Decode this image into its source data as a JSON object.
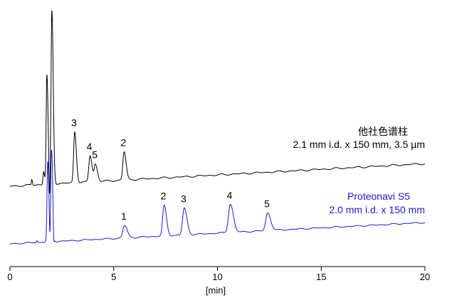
{
  "chart_data": {
    "type": "line",
    "xlabel": "[min]",
    "xlim": [
      0,
      20
    ],
    "xticks": [
      0,
      5,
      10,
      15,
      20
    ],
    "grid": false,
    "series": [
      {
        "name_line1": "他社色谱柱",
        "name_line2": "2.1 mm i.d. x 150 mm, 3.5 µm",
        "color": "#000000",
        "baseline_start": 0.0,
        "baseline_end": 0.12,
        "baseline_wiggle": 0.005,
        "peaks": [
          {
            "t": 1.05,
            "h": 0.03,
            "w": 0.02
          },
          {
            "t": 1.62,
            "h": 0.07,
            "w": 0.03
          },
          {
            "t": 1.78,
            "h": 0.58,
            "w": 0.035
          },
          {
            "t": 1.9,
            "h": -0.12,
            "w": 0.02
          },
          {
            "t": 2.02,
            "h": 0.92,
            "w": 0.04
          },
          {
            "t": 3.12,
            "h": 0.27,
            "w": 0.05,
            "label": "3"
          },
          {
            "t": 3.86,
            "h": 0.14,
            "w": 0.06,
            "label": "4"
          },
          {
            "t": 4.12,
            "h": 0.09,
            "w": 0.06,
            "label": "5"
          },
          {
            "t": 5.5,
            "h": 0.15,
            "w": 0.06,
            "label": "2"
          }
        ]
      },
      {
        "name_line1": "Proteonavi S5",
        "name_line2": "2.0 mm i.d. x 150 mm",
        "color": "#1a1ad6",
        "baseline_start": 0.0,
        "baseline_end": 0.12,
        "baseline_wiggle": 0.004,
        "peaks": [
          {
            "t": 1.3,
            "h": 0.01,
            "w": 0.02
          },
          {
            "t": 1.82,
            "h": 0.45,
            "w": 0.035
          },
          {
            "t": 1.93,
            "h": -0.12,
            "w": 0.02
          },
          {
            "t": 2.0,
            "h": 0.52,
            "w": 0.04
          },
          {
            "t": 2.1,
            "h": -0.1,
            "w": 0.02
          },
          {
            "t": 5.52,
            "h": 0.07,
            "w": 0.08,
            "label": "1"
          },
          {
            "t": 7.43,
            "h": 0.17,
            "w": 0.07,
            "label": "2"
          },
          {
            "t": 8.4,
            "h": 0.15,
            "w": 0.08,
            "label": "3"
          },
          {
            "t": 10.62,
            "h": 0.16,
            "w": 0.09,
            "label": "4"
          },
          {
            "t": 12.42,
            "h": 0.1,
            "w": 0.09,
            "label": "5"
          }
        ]
      }
    ]
  }
}
